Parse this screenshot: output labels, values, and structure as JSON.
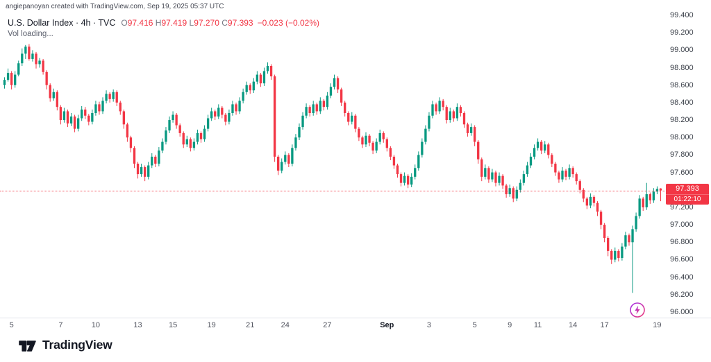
{
  "attribution": "angiepanoyan created with TradingView.com, Sep 19, 2025 05:37 UTC",
  "legend": {
    "title": "U.S. Dollar Index · 4h · TVC",
    "ohlc": [
      {
        "k": "O",
        "v": "97.416"
      },
      {
        "k": "H",
        "v": "97.419"
      },
      {
        "k": "L",
        "v": "97.270"
      },
      {
        "k": "C",
        "v": "97.393"
      }
    ],
    "change": "−0.023 (−0.02%)",
    "volume_label": "Vol loading..."
  },
  "footer": {
    "brand": "TradingView"
  },
  "icons": {
    "flash": "lightning-bolt",
    "brand_mark": "tradingview-logo"
  },
  "chart_data": {
    "type": "candlestick",
    "symbol": "U.S. Dollar Index",
    "interval": "4h",
    "exchange": "TVC",
    "ylim": [
      96.0,
      99.4
    ],
    "grid": false,
    "colors": {
      "up": "#089981",
      "down": "#f23645",
      "last": "#f23645"
    },
    "last_price": {
      "value": 97.393,
      "label": "97.393",
      "countdown": "01:22:10"
    },
    "price_ticks": [
      "99.400",
      "99.200",
      "99.000",
      "98.800",
      "98.600",
      "98.400",
      "98.200",
      "98.000",
      "97.800",
      "97.600",
      "97.400",
      "97.200",
      "97.000",
      "96.800",
      "96.600",
      "96.400",
      "96.200",
      "96.000"
    ],
    "time_ticks": [
      {
        "label": "5",
        "i": 2
      },
      {
        "label": "7",
        "i": 16
      },
      {
        "label": "10",
        "i": 26
      },
      {
        "label": "13",
        "i": 38
      },
      {
        "label": "15",
        "i": 48
      },
      {
        "label": "19",
        "i": 59
      },
      {
        "label": "21",
        "i": 70
      },
      {
        "label": "24",
        "i": 80
      },
      {
        "label": "27",
        "i": 92
      },
      {
        "label": "Sep",
        "i": 109,
        "bold": true
      },
      {
        "label": "3",
        "i": 121
      },
      {
        "label": "5",
        "i": 134
      },
      {
        "label": "9",
        "i": 144
      },
      {
        "label": "11",
        "i": 152
      },
      {
        "label": "14",
        "i": 162
      },
      {
        "label": "17",
        "i": 171
      },
      {
        "label": "19",
        "i": 186
      }
    ],
    "candles": [
      [
        98.6,
        98.69,
        98.56,
        98.66
      ],
      [
        98.66,
        98.79,
        98.64,
        98.74
      ],
      [
        98.74,
        98.76,
        98.55,
        98.6
      ],
      [
        98.6,
        98.76,
        98.57,
        98.72
      ],
      [
        98.72,
        98.88,
        98.7,
        98.85
      ],
      [
        98.85,
        99.02,
        98.82,
        98.96
      ],
      [
        98.96,
        99.06,
        98.9,
        99.04
      ],
      [
        99.04,
        99.07,
        98.88,
        98.9
      ],
      [
        98.9,
        99.0,
        98.87,
        98.96
      ],
      [
        98.96,
        98.98,
        98.79,
        98.84
      ],
      [
        98.84,
        98.91,
        98.8,
        98.88
      ],
      [
        98.88,
        98.9,
        98.72,
        98.75
      ],
      [
        98.75,
        98.77,
        98.55,
        98.6
      ],
      [
        98.6,
        98.62,
        98.41,
        98.45
      ],
      [
        98.45,
        98.56,
        98.42,
        98.52
      ],
      [
        98.52,
        98.54,
        98.31,
        98.35
      ],
      [
        98.35,
        98.37,
        98.15,
        98.2
      ],
      [
        98.2,
        98.34,
        98.17,
        98.3
      ],
      [
        98.3,
        98.32,
        98.12,
        98.16
      ],
      [
        98.16,
        98.28,
        98.13,
        98.24
      ],
      [
        98.24,
        98.26,
        98.06,
        98.1
      ],
      [
        98.1,
        98.26,
        98.07,
        98.22
      ],
      [
        98.22,
        98.36,
        98.19,
        98.32
      ],
      [
        98.32,
        98.35,
        98.21,
        98.25
      ],
      [
        98.25,
        98.27,
        98.14,
        98.18
      ],
      [
        98.18,
        98.32,
        98.15,
        98.28
      ],
      [
        98.28,
        98.42,
        98.25,
        98.38
      ],
      [
        98.38,
        98.41,
        98.26,
        98.3
      ],
      [
        98.3,
        98.46,
        98.27,
        98.42
      ],
      [
        98.42,
        98.54,
        98.39,
        98.5
      ],
      [
        98.5,
        98.52,
        98.4,
        98.44
      ],
      [
        98.44,
        98.55,
        98.41,
        98.52
      ],
      [
        98.52,
        98.54,
        98.36,
        98.4
      ],
      [
        98.4,
        98.42,
        98.26,
        98.3
      ],
      [
        98.3,
        98.32,
        98.1,
        98.15
      ],
      [
        98.15,
        98.17,
        97.95,
        98.0
      ],
      [
        98.0,
        98.02,
        97.83,
        97.88
      ],
      [
        97.88,
        97.9,
        97.65,
        97.7
      ],
      [
        97.7,
        97.72,
        97.53,
        97.58
      ],
      [
        97.58,
        97.7,
        97.55,
        97.66
      ],
      [
        97.66,
        97.68,
        97.5,
        97.55
      ],
      [
        97.55,
        97.72,
        97.52,
        97.68
      ],
      [
        97.68,
        97.82,
        97.65,
        97.78
      ],
      [
        97.78,
        97.8,
        97.66,
        97.7
      ],
      [
        97.7,
        97.89,
        97.67,
        97.85
      ],
      [
        97.85,
        97.99,
        97.82,
        97.95
      ],
      [
        97.95,
        98.12,
        97.92,
        98.08
      ],
      [
        98.08,
        98.24,
        98.05,
        98.2
      ],
      [
        98.2,
        98.3,
        98.17,
        98.26
      ],
      [
        98.26,
        98.28,
        98.1,
        98.14
      ],
      [
        98.14,
        98.16,
        98.01,
        98.05
      ],
      [
        98.05,
        98.07,
        97.88,
        97.92
      ],
      [
        97.92,
        98.02,
        97.89,
        97.98
      ],
      [
        97.98,
        98.0,
        97.84,
        97.88
      ],
      [
        97.88,
        97.99,
        97.85,
        97.95
      ],
      [
        97.95,
        98.09,
        97.92,
        98.05
      ],
      [
        98.05,
        98.07,
        97.94,
        97.98
      ],
      [
        97.98,
        98.14,
        97.95,
        98.1
      ],
      [
        98.1,
        98.26,
        98.07,
        98.22
      ],
      [
        98.22,
        98.34,
        98.19,
        98.3
      ],
      [
        98.3,
        98.32,
        98.2,
        98.24
      ],
      [
        98.24,
        98.38,
        98.21,
        98.34
      ],
      [
        98.34,
        98.36,
        98.22,
        98.26
      ],
      [
        98.26,
        98.28,
        98.14,
        98.18
      ],
      [
        98.18,
        98.32,
        98.15,
        98.28
      ],
      [
        98.28,
        98.42,
        98.25,
        98.38
      ],
      [
        98.38,
        98.4,
        98.26,
        98.3
      ],
      [
        98.3,
        98.46,
        98.27,
        98.42
      ],
      [
        98.42,
        98.56,
        98.39,
        98.52
      ],
      [
        98.52,
        98.64,
        98.49,
        98.6
      ],
      [
        98.6,
        98.62,
        98.5,
        98.54
      ],
      [
        98.54,
        98.68,
        98.51,
        98.64
      ],
      [
        98.64,
        98.76,
        98.61,
        98.72
      ],
      [
        98.72,
        98.74,
        98.58,
        98.62
      ],
      [
        98.62,
        98.8,
        98.59,
        98.76
      ],
      [
        98.76,
        98.86,
        98.73,
        98.82
      ],
      [
        98.82,
        98.84,
        98.66,
        98.7
      ],
      [
        98.7,
        98.72,
        97.72,
        97.78
      ],
      [
        97.78,
        97.8,
        97.57,
        97.62
      ],
      [
        97.62,
        97.76,
        97.59,
        97.72
      ],
      [
        97.72,
        97.84,
        97.69,
        97.8
      ],
      [
        97.8,
        97.82,
        97.66,
        97.7
      ],
      [
        97.7,
        97.92,
        97.67,
        97.88
      ],
      [
        97.88,
        98.04,
        97.85,
        98.0
      ],
      [
        98.0,
        98.16,
        97.97,
        98.12
      ],
      [
        98.12,
        98.29,
        98.09,
        98.25
      ],
      [
        98.25,
        98.39,
        98.22,
        98.35
      ],
      [
        98.35,
        98.37,
        98.24,
        98.28
      ],
      [
        98.28,
        98.42,
        98.25,
        98.38
      ],
      [
        98.38,
        98.4,
        98.26,
        98.3
      ],
      [
        98.3,
        98.46,
        98.27,
        98.42
      ],
      [
        98.42,
        98.44,
        98.31,
        98.35
      ],
      [
        98.35,
        98.52,
        98.32,
        98.48
      ],
      [
        98.48,
        98.62,
        98.45,
        98.58
      ],
      [
        98.58,
        98.72,
        98.55,
        98.68
      ],
      [
        98.68,
        98.7,
        98.51,
        98.55
      ],
      [
        98.55,
        98.57,
        98.36,
        98.4
      ],
      [
        98.4,
        98.42,
        98.24,
        98.28
      ],
      [
        98.28,
        98.3,
        98.14,
        98.18
      ],
      [
        98.18,
        98.29,
        98.15,
        98.25
      ],
      [
        98.25,
        98.27,
        98.06,
        98.1
      ],
      [
        98.1,
        98.12,
        97.96,
        98.0
      ],
      [
        98.0,
        98.02,
        97.88,
        97.92
      ],
      [
        97.92,
        98.06,
        97.89,
        98.02
      ],
      [
        98.02,
        98.04,
        97.9,
        97.94
      ],
      [
        97.94,
        97.96,
        97.81,
        97.85
      ],
      [
        97.85,
        97.99,
        97.82,
        97.95
      ],
      [
        97.95,
        98.09,
        97.92,
        98.05
      ],
      [
        98.05,
        98.07,
        97.94,
        97.98
      ],
      [
        97.98,
        98.0,
        97.84,
        97.88
      ],
      [
        97.88,
        97.9,
        97.74,
        97.78
      ],
      [
        97.78,
        97.8,
        97.64,
        97.68
      ],
      [
        97.68,
        97.7,
        97.54,
        97.58
      ],
      [
        97.58,
        97.6,
        97.44,
        97.48
      ],
      [
        97.48,
        97.6,
        97.45,
        97.56
      ],
      [
        97.56,
        97.58,
        97.42,
        97.46
      ],
      [
        97.46,
        97.59,
        97.43,
        97.55
      ],
      [
        97.55,
        97.69,
        97.52,
        97.65
      ],
      [
        97.65,
        97.84,
        97.62,
        97.8
      ],
      [
        97.8,
        97.99,
        97.77,
        97.95
      ],
      [
        97.95,
        98.14,
        97.92,
        98.1
      ],
      [
        98.1,
        98.29,
        98.07,
        98.25
      ],
      [
        98.25,
        98.42,
        98.22,
        98.38
      ],
      [
        98.38,
        98.4,
        98.26,
        98.3
      ],
      [
        98.3,
        98.46,
        98.27,
        98.42
      ],
      [
        98.42,
        98.44,
        98.31,
        98.35
      ],
      [
        98.35,
        98.37,
        98.16,
        98.2
      ],
      [
        98.2,
        98.34,
        98.17,
        98.3
      ],
      [
        98.3,
        98.32,
        98.18,
        98.22
      ],
      [
        98.22,
        98.39,
        98.19,
        98.35
      ],
      [
        98.35,
        98.37,
        98.24,
        98.28
      ],
      [
        98.28,
        98.3,
        98.11,
        98.15
      ],
      [
        98.15,
        98.17,
        98.01,
        98.05
      ],
      [
        98.05,
        98.16,
        98.02,
        98.12
      ],
      [
        98.12,
        98.14,
        97.9,
        97.95
      ],
      [
        97.95,
        97.97,
        97.7,
        97.75
      ],
      [
        97.75,
        97.77,
        97.5,
        97.55
      ],
      [
        97.55,
        97.69,
        97.52,
        97.65
      ],
      [
        97.65,
        97.67,
        97.48,
        97.52
      ],
      [
        97.52,
        97.64,
        97.49,
        97.6
      ],
      [
        97.6,
        97.62,
        97.44,
        97.48
      ],
      [
        97.48,
        97.6,
        97.45,
        97.56
      ],
      [
        97.56,
        97.58,
        97.41,
        97.45
      ],
      [
        97.45,
        97.47,
        97.31,
        97.35
      ],
      [
        97.35,
        97.46,
        97.32,
        97.42
      ],
      [
        97.42,
        97.44,
        97.26,
        97.3
      ],
      [
        97.3,
        97.44,
        97.27,
        97.4
      ],
      [
        97.4,
        97.52,
        97.37,
        97.48
      ],
      [
        97.48,
        97.62,
        97.45,
        97.58
      ],
      [
        97.58,
        97.72,
        97.55,
        97.68
      ],
      [
        97.68,
        97.82,
        97.65,
        97.78
      ],
      [
        97.78,
        97.92,
        97.75,
        97.88
      ],
      [
        97.88,
        97.99,
        97.85,
        97.95
      ],
      [
        97.95,
        97.97,
        97.81,
        97.85
      ],
      [
        97.85,
        97.96,
        97.82,
        97.92
      ],
      [
        97.92,
        97.94,
        97.76,
        97.8
      ],
      [
        97.8,
        97.82,
        97.66,
        97.7
      ],
      [
        97.7,
        97.72,
        97.56,
        97.6
      ],
      [
        97.6,
        97.62,
        97.48,
        97.52
      ],
      [
        97.52,
        97.66,
        97.49,
        97.62
      ],
      [
        97.62,
        97.64,
        97.51,
        97.55
      ],
      [
        97.55,
        97.69,
        97.52,
        97.65
      ],
      [
        97.65,
        97.67,
        97.54,
        97.58
      ],
      [
        97.58,
        97.6,
        97.46,
        97.5
      ],
      [
        97.5,
        97.52,
        97.36,
        97.4
      ],
      [
        97.4,
        97.42,
        97.26,
        97.3
      ],
      [
        97.3,
        97.32,
        97.18,
        97.22
      ],
      [
        97.22,
        97.36,
        97.19,
        97.32
      ],
      [
        97.32,
        97.34,
        97.21,
        97.25
      ],
      [
        97.25,
        97.27,
        97.1,
        97.15
      ],
      [
        97.15,
        97.17,
        96.95,
        97.0
      ],
      [
        97.0,
        97.02,
        96.8,
        96.85
      ],
      [
        96.85,
        96.87,
        96.64,
        96.7
      ],
      [
        96.7,
        96.72,
        96.55,
        96.6
      ],
      [
        96.6,
        96.74,
        96.57,
        96.7
      ],
      [
        96.7,
        96.72,
        96.58,
        96.62
      ],
      [
        96.62,
        96.79,
        96.59,
        96.75
      ],
      [
        96.75,
        96.92,
        96.72,
        96.88
      ],
      [
        96.88,
        96.9,
        96.76,
        96.8
      ],
      [
        96.8,
        96.99,
        96.22,
        96.95
      ],
      [
        96.95,
        97.14,
        96.92,
        97.1
      ],
      [
        97.1,
        97.34,
        97.07,
        97.3
      ],
      [
        97.3,
        97.32,
        97.16,
        97.2
      ],
      [
        97.2,
        97.48,
        97.17,
        97.35
      ],
      [
        97.35,
        97.37,
        97.24,
        97.28
      ],
      [
        97.28,
        97.42,
        97.25,
        97.38
      ],
      [
        97.38,
        97.44,
        97.35,
        97.41
      ],
      [
        97.416,
        97.419,
        97.27,
        97.393
      ]
    ]
  }
}
